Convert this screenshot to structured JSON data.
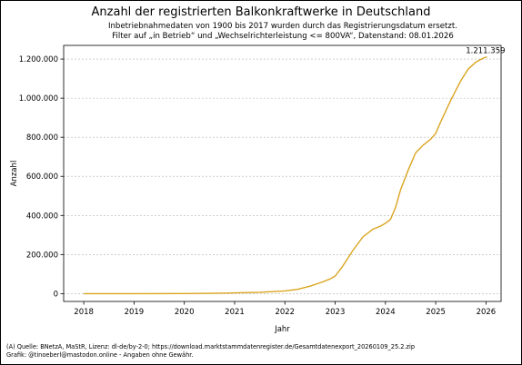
{
  "chart_data": {
    "type": "line",
    "title": "Anzahl der registrierten Balkonkraftwerke in Deutschland",
    "subtitle_lines": [
      "Inbetriebnahmedaten von 1900 bis 2017 wurden durch das Registrierungsdatum ersetzt.",
      "Filter auf „in Betrieb“ und „Wechselrichterleistung <= 800VA“, Datenstand: 08.01.2026"
    ],
    "xlabel": "Jahr",
    "ylabel": "Anzahl",
    "xlim": [
      2017.6,
      2026.3
    ],
    "ylim": [
      -40000,
      1270000
    ],
    "x_ticks": [
      2018,
      2019,
      2020,
      2021,
      2022,
      2023,
      2024,
      2025,
      2026
    ],
    "x_tick_labels": [
      "2018",
      "2019",
      "2020",
      "2021",
      "2022",
      "2023",
      "2024",
      "2025",
      "2026"
    ],
    "y_ticks": [
      0,
      200000,
      400000,
      600000,
      800000,
      1000000,
      1200000
    ],
    "y_tick_labels": [
      "0",
      "200.000",
      "400.000",
      "600.000",
      "800.000",
      "1.000.000",
      "1.200.000"
    ],
    "grid": "y",
    "line_color": "#DAA520",
    "series": [
      {
        "x": [
          2018.0,
          2019.0,
          2020.0,
          2020.5,
          2021.0,
          2021.5,
          2022.0,
          2022.25,
          2022.5,
          2022.75,
          2022.9,
          2023.0,
          2023.15,
          2023.35,
          2023.55,
          2023.75,
          2023.9,
          2024.0,
          2024.1,
          2024.2,
          2024.3,
          2024.45,
          2024.6,
          2024.75,
          2024.9,
          2025.0,
          2025.1,
          2025.3,
          2025.5,
          2025.65,
          2025.8,
          2025.95,
          2026.02
        ],
        "y": [
          0,
          0,
          500,
          1500,
          3500,
          7000,
          14000,
          22000,
          38000,
          60000,
          75000,
          90000,
          140000,
          220000,
          290000,
          330000,
          345000,
          360000,
          380000,
          440000,
          530000,
          630000,
          720000,
          760000,
          790000,
          820000,
          880000,
          990000,
          1090000,
          1150000,
          1185000,
          1205000,
          1211359
        ]
      }
    ],
    "annotations": [
      {
        "text": "1.211.359",
        "x": 2026.02,
        "y": 1211359
      }
    ]
  },
  "footer_lines": [
    "(A) Quelle: BNetzA, MaStR, Lizenz: dl-de/by-2-0; https://download.marktstammdatenregister.de/Gesamtdatenexport_20260109_25.2.zip",
    "Grafik: @tinoeberl@mastodon.online - Angaben ohne Gewähr."
  ]
}
